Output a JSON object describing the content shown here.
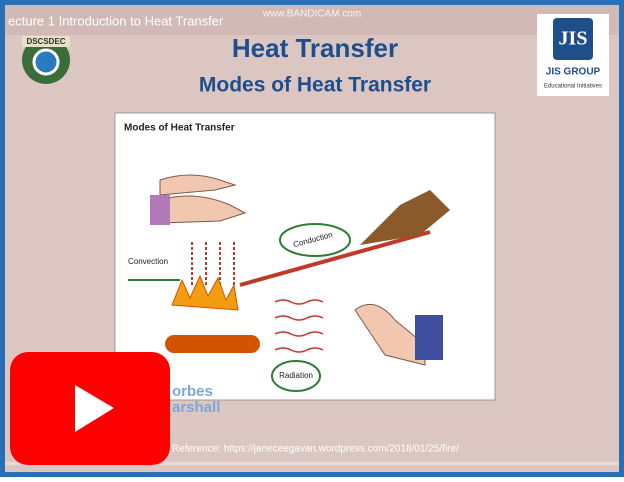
{
  "player": {
    "video_title": "ecture 1 Introduction to Heat Transfer",
    "watermark": "www.BANDICAM.com"
  },
  "slide": {
    "logo_left": "DSCSDEC",
    "title": "Heat Transfer",
    "subtitle": "Modes of Heat Transfer",
    "logo_right": {
      "name": "JIS GROUP",
      "tagline": "Educational Initiatives"
    },
    "figure": {
      "title": "Modes of Heat Transfer",
      "labels": [
        "Convection",
        "Conduction",
        "Radiation"
      ],
      "brand": [
        "orbes",
        "arshall"
      ]
    },
    "reference": "Reference: https://janeceegavan.wordpress.com/2018/01/25/fire/"
  }
}
